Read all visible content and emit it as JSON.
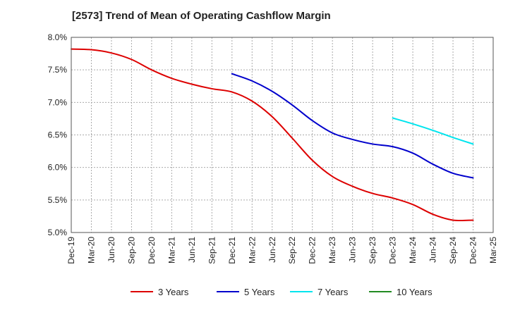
{
  "chart_data": {
    "type": "line",
    "title": "[2573]  Trend of Mean of Operating Cashflow Margin",
    "xlabel": "",
    "ylabel": "",
    "categories": [
      "Dec-19",
      "Mar-20",
      "Jun-20",
      "Sep-20",
      "Dec-20",
      "Mar-21",
      "Jun-21",
      "Sep-21",
      "Dec-21",
      "Mar-22",
      "Jun-22",
      "Sep-22",
      "Dec-22",
      "Mar-23",
      "Jun-23",
      "Sep-23",
      "Dec-23",
      "Mar-24",
      "Jun-24",
      "Sep-24",
      "Dec-24",
      "Mar-25"
    ],
    "y_ticks": [
      "5.0%",
      "5.5%",
      "6.0%",
      "6.5%",
      "7.0%",
      "7.5%",
      "8.0%"
    ],
    "ylim": [
      5.0,
      8.0
    ],
    "grid": true,
    "legend_position": "bottom",
    "series": [
      {
        "name": "3 Years",
        "color": "#dd0000",
        "values": [
          7.82,
          7.81,
          7.76,
          7.66,
          7.5,
          7.37,
          7.28,
          7.21,
          7.16,
          7.02,
          6.78,
          6.45,
          6.11,
          5.86,
          5.71,
          5.6,
          5.53,
          5.43,
          5.28,
          5.19,
          5.19,
          null
        ]
      },
      {
        "name": "5 Years",
        "color": "#0000cc",
        "values": [
          null,
          null,
          null,
          null,
          null,
          null,
          null,
          null,
          7.44,
          7.33,
          7.17,
          6.96,
          6.72,
          6.53,
          6.43,
          6.36,
          6.32,
          6.22,
          6.05,
          5.91,
          5.84,
          null
        ]
      },
      {
        "name": "7 Years",
        "color": "#00e5ee",
        "values": [
          null,
          null,
          null,
          null,
          null,
          null,
          null,
          null,
          null,
          null,
          null,
          null,
          null,
          null,
          null,
          null,
          6.76,
          6.67,
          6.57,
          6.46,
          6.36,
          null
        ]
      },
      {
        "name": "10 Years",
        "color": "#228b22",
        "values": [
          null,
          null,
          null,
          null,
          null,
          null,
          null,
          null,
          null,
          null,
          null,
          null,
          null,
          null,
          null,
          null,
          null,
          null,
          null,
          null,
          null,
          null
        ]
      }
    ]
  }
}
